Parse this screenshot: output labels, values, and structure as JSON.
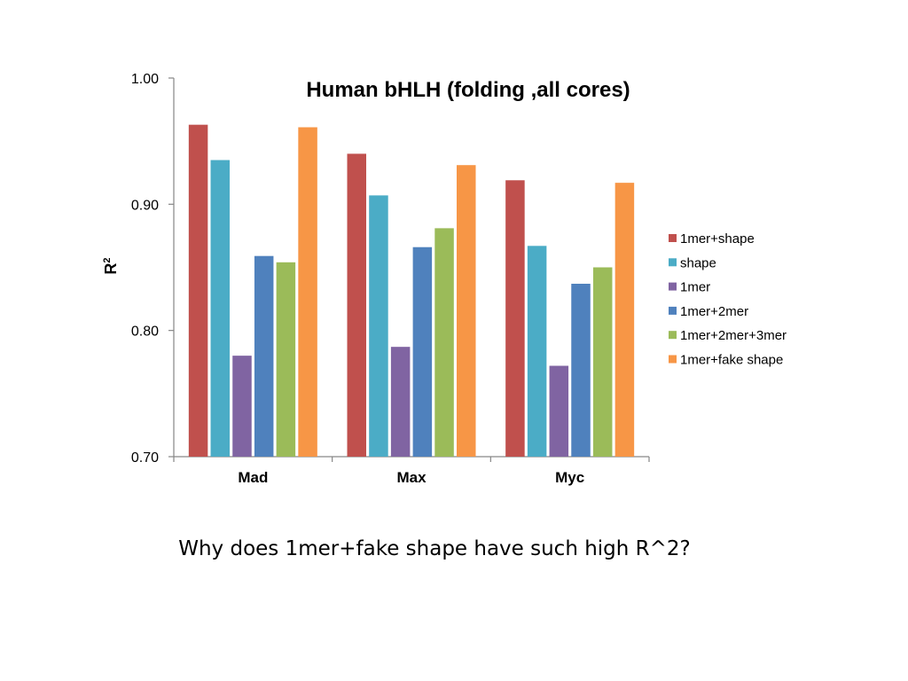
{
  "chart_data": {
    "type": "bar",
    "title": "Human bHLH (folding ,all cores)",
    "xlabel": "",
    "ylabel": "R",
    "ylabel_superscript": "2",
    "ylim": [
      0.7,
      1.0
    ],
    "yticks": [
      "0.70",
      "0.80",
      "0.90",
      "1.00"
    ],
    "ytick_values": [
      0.7,
      0.8,
      0.9,
      1.0
    ],
    "grid": false,
    "legend_position": "right",
    "categories": [
      "Mad",
      "Max",
      "Myc"
    ],
    "series": [
      {
        "name": "1mer+shape",
        "color": "#c0504d",
        "values": [
          0.963,
          0.94,
          0.919
        ]
      },
      {
        "name": "shape",
        "color": "#4bacc6",
        "values": [
          0.935,
          0.907,
          0.867
        ]
      },
      {
        "name": "1mer",
        "color": "#8064a2",
        "values": [
          0.78,
          0.787,
          0.772
        ]
      },
      {
        "name": "1mer+2mer",
        "color": "#4f81bd",
        "values": [
          0.859,
          0.866,
          0.837
        ]
      },
      {
        "name": "1mer+2mer+3mer",
        "color": "#9bbb59",
        "values": [
          0.854,
          0.881,
          0.85
        ]
      },
      {
        "name": "1mer+fake shape",
        "color": "#f79646",
        "values": [
          0.961,
          0.931,
          0.917
        ]
      }
    ]
  },
  "caption": "Why does 1mer+fake shape have such high R^2?"
}
